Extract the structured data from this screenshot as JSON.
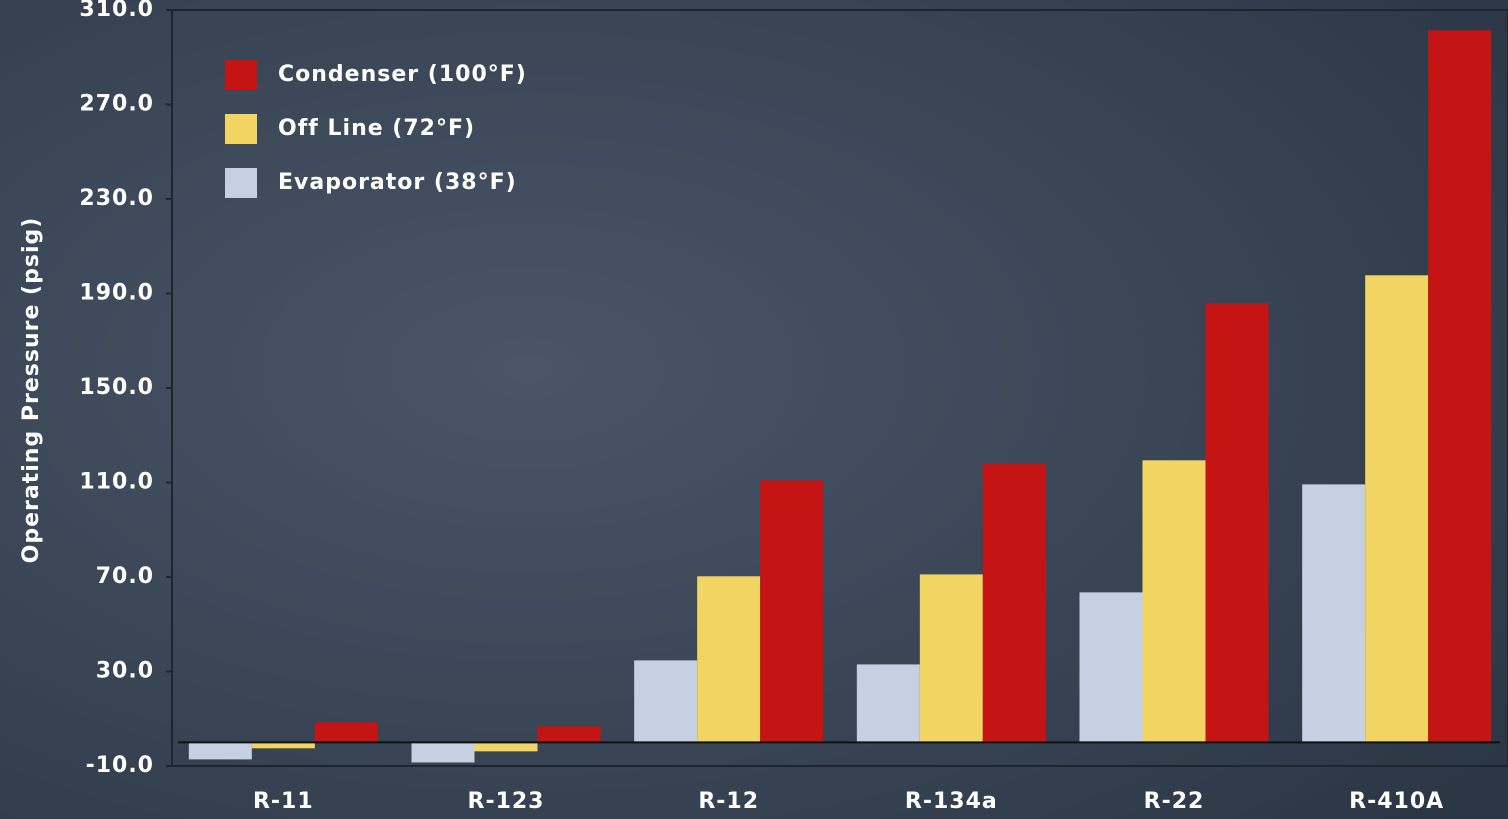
{
  "chart_data": {
    "type": "bar",
    "ylabel": "Operating Pressure (psig)",
    "categories": [
      "R-11",
      "R-123",
      "R-12",
      "R-134a",
      "R-22",
      "R-410A"
    ],
    "series": [
      {
        "name": "Evaporator (38°F)",
        "color": "#c5d1e3",
        "values": [
          -7.2,
          -8.5,
          34.7,
          33,
          63.5,
          109.2
        ]
      },
      {
        "name": "Off Line (72°F)",
        "color": "#f2d463",
        "values": [
          -2.5,
          -3.8,
          70.3,
          71.1,
          119.4,
          197.7
        ]
      },
      {
        "name": "Condenser (100°F)",
        "color": "#c41414",
        "values": [
          8.5,
          6.8,
          110.9,
          118,
          185.8,
          301.4
        ]
      }
    ],
    "ylim": [
      -10,
      310
    ],
    "yticks": [
      {
        "value": -10,
        "label": "-10.0"
      },
      {
        "value": 30,
        "label": "30.0"
      },
      {
        "value": 70,
        "label": "70.0"
      },
      {
        "value": 110,
        "label": "110.0"
      },
      {
        "value": 150,
        "label": "150.0"
      },
      {
        "value": 190,
        "label": "190.0"
      },
      {
        "value": 230,
        "label": "230.0"
      },
      {
        "value": 270,
        "label": "270.0"
      },
      {
        "value": 310,
        "label": "310.0"
      }
    ],
    "legend": "upper left"
  }
}
